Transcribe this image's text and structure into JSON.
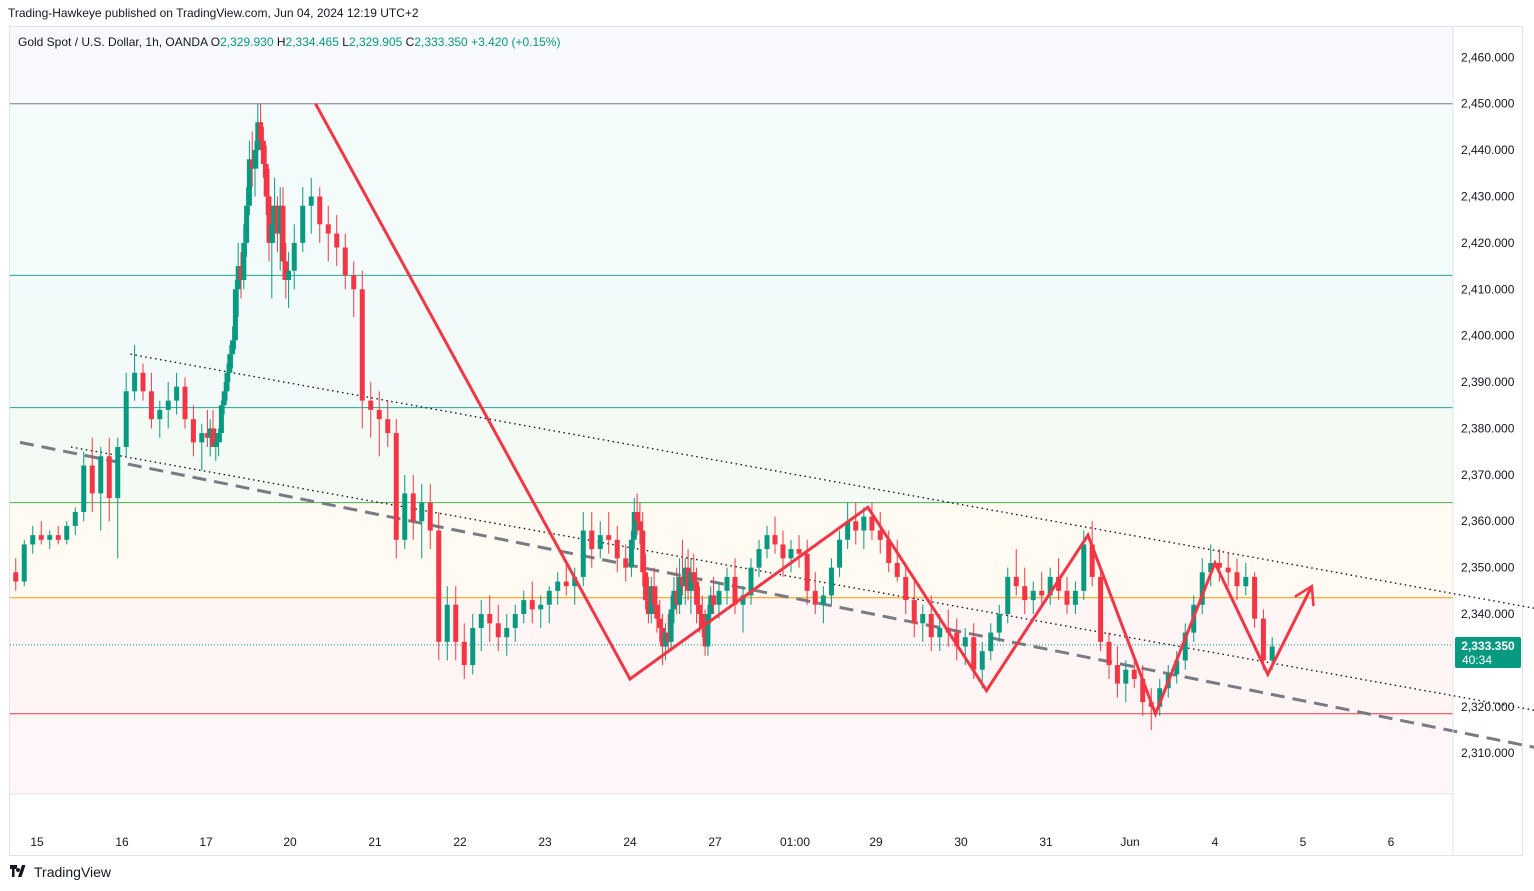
{
  "header": {
    "publisher_line": "Trading-Hawkeye published on TradingView.com, Jun 04, 2024 12:19 UTC+2"
  },
  "legend": {
    "symbol": "Gold Spot / U.S. Dollar, 1h, OANDA",
    "o_label": "O",
    "o_value": "2,329.930",
    "h_label": "H",
    "h_value": "2,334.465",
    "l_label": "L",
    "l_value": "2,329.905",
    "c_label": "C",
    "c_value": "2,333.350",
    "change": "+3.420 (+0.15%)"
  },
  "price_badge": {
    "value": "2,333.350",
    "countdown": "40:34"
  },
  "footer": {
    "brand": "TradingView"
  },
  "colors": {
    "up": "#089981",
    "down": "#f23645",
    "pattern": "#f23645",
    "teal_level": "#26a69a",
    "green_level": "#4caf50",
    "orange_level": "#ff9800",
    "red_level": "#f23645",
    "gray_level": "#787b86"
  },
  "chart_data": {
    "type": "candlestick",
    "ylim": [
      2305,
      2465
    ],
    "x_ticks": [
      "15",
      "16",
      "17",
      "20",
      "21",
      "22",
      "23",
      "24",
      "27",
      "01:00",
      "29",
      "30",
      "31",
      "Jun",
      "4",
      "5",
      "6"
    ],
    "y_ticks": [
      2310,
      2320,
      2330,
      2340,
      2350,
      2360,
      2370,
      2380,
      2390,
      2400,
      2410,
      2420,
      2430,
      2440,
      2450,
      2460
    ],
    "y_tick_labels": [
      "2,310.000",
      "2,320.000",
      "2,330.000",
      "2,340.000",
      "2,350.000",
      "2,360.000",
      "2,370.000",
      "2,380.000",
      "2,390.000",
      "2,400.000",
      "2,410.000",
      "2,420.000",
      "2,430.000",
      "2,440.000",
      "2,450.000",
      "2,460.000"
    ],
    "last_price": 2333.35,
    "horizontal_levels": [
      {
        "price": 2450.0,
        "color": "gray"
      },
      {
        "price": 2413.0,
        "color": "teal"
      },
      {
        "price": 2384.5,
        "color": "teal"
      },
      {
        "price": 2364.0,
        "color": "green"
      },
      {
        "price": 2343.5,
        "color": "orange"
      },
      {
        "price": 2318.5,
        "color": "red"
      }
    ],
    "zigzag_path": [
      {
        "t": 20.3,
        "price": 2450.0
      },
      {
        "t": 24.0,
        "price": 2326.0
      },
      {
        "t": 28.9,
        "price": 2363.0
      },
      {
        "t": 30.3,
        "price": 2323.5
      },
      {
        "t": 31.5,
        "price": 2357.0
      },
      {
        "t": 32.3,
        "price": 2318.5
      },
      {
        "t": 33.0,
        "price": 2351.0
      },
      {
        "t": 33.6,
        "price": 2327.0
      },
      {
        "t": 34.1,
        "price": 2346.0
      }
    ],
    "trendlines": [
      {
        "style": "dotted",
        "from": {
          "t": 16.1,
          "price": 2396.0
        },
        "to": {
          "t": 36.7,
          "price": 2341.0
        }
      },
      {
        "style": "dotted",
        "from": {
          "t": 15.4,
          "price": 2376.0
        },
        "to": {
          "t": 36.7,
          "price": 2319.0
        }
      },
      {
        "style": "dashed",
        "from": {
          "t": 14.8,
          "price": 2377.0
        },
        "to": {
          "t": 36.7,
          "price": 2311.0
        }
      }
    ],
    "candles": [
      [
        14.75,
        2349,
        2352,
        2345,
        2347
      ],
      [
        14.85,
        2347,
        2356,
        2346,
        2355
      ],
      [
        14.95,
        2355,
        2359,
        2353,
        2357
      ],
      [
        15.05,
        2357,
        2360,
        2355,
        2356
      ],
      [
        15.15,
        2356,
        2358,
        2354,
        2357
      ],
      [
        15.25,
        2357,
        2359,
        2355,
        2356
      ],
      [
        15.35,
        2356,
        2360,
        2355,
        2359
      ],
      [
        15.45,
        2359,
        2363,
        2357,
        2362
      ],
      [
        15.55,
        2362,
        2375,
        2360,
        2372
      ],
      [
        15.65,
        2372,
        2378,
        2362,
        2366
      ],
      [
        15.75,
        2366,
        2376,
        2358,
        2374
      ],
      [
        15.85,
        2374,
        2378,
        2360,
        2365
      ],
      [
        15.95,
        2365,
        2378,
        2352,
        2376
      ],
      [
        16.05,
        2376,
        2392,
        2374,
        2388
      ],
      [
        16.15,
        2388,
        2398,
        2386,
        2392
      ],
      [
        16.25,
        2392,
        2394,
        2386,
        2388
      ],
      [
        16.35,
        2388,
        2392,
        2380,
        2382
      ],
      [
        16.45,
        2382,
        2386,
        2378,
        2384
      ],
      [
        16.55,
        2384,
        2390,
        2380,
        2386
      ],
      [
        16.65,
        2386,
        2392,
        2383,
        2389
      ],
      [
        16.75,
        2389,
        2391,
        2380,
        2382
      ],
      [
        16.85,
        2382,
        2385,
        2374,
        2377
      ],
      [
        16.95,
        2377,
        2381,
        2371,
        2379
      ],
      [
        17.05,
        2379,
        2384,
        2376,
        2378
      ],
      [
        17.15,
        2378,
        2382,
        2374,
        2380
      ],
      [
        17.25,
        2380,
        2384,
        2377,
        2376
      ],
      [
        17.35,
        2376,
        2380,
        2373,
        2377
      ],
      [
        17.45,
        2377,
        2380,
        2374,
        2379
      ],
      [
        17.55,
        2379,
        2386,
        2377,
        2385
      ],
      [
        17.65,
        2385,
        2390,
        2383,
        2388
      ],
      [
        17.75,
        2388,
        2394,
        2386,
        2392
      ],
      [
        17.85,
        2392,
        2398,
        2390,
        2396
      ],
      [
        17.95,
        2396,
        2402,
        2393,
        2399
      ],
      [
        18.05,
        2399,
        2412,
        2397,
        2410
      ],
      [
        18.15,
        2410,
        2420,
        2404,
        2415
      ],
      [
        18.25,
        2415,
        2418,
        2408,
        2412
      ],
      [
        18.35,
        2412,
        2424,
        2410,
        2420
      ],
      [
        18.45,
        2420,
        2432,
        2417,
        2428
      ],
      [
        18.55,
        2428,
        2442,
        2426,
        2438
      ],
      [
        18.65,
        2438,
        2444,
        2432,
        2436
      ],
      [
        18.75,
        2436,
        2442,
        2430,
        2440
      ],
      [
        18.85,
        2440,
        2450,
        2436,
        2446
      ],
      [
        18.95,
        2446,
        2450,
        2440,
        2442
      ],
      [
        19.05,
        2442,
        2445,
        2434,
        2437
      ],
      [
        19.15,
        2437,
        2441,
        2426,
        2430
      ],
      [
        19.25,
        2430,
        2436,
        2416,
        2420
      ],
      [
        19.35,
        2420,
        2428,
        2408,
        2424
      ],
      [
        19.45,
        2424,
        2434,
        2420,
        2428
      ],
      [
        19.55,
        2428,
        2430,
        2418,
        2422
      ],
      [
        19.65,
        2422,
        2432,
        2414,
        2428
      ],
      [
        19.75,
        2428,
        2432,
        2412,
        2416
      ],
      [
        19.85,
        2416,
        2420,
        2408,
        2412
      ],
      [
        19.95,
        2412,
        2418,
        2406,
        2414
      ],
      [
        20.05,
        2414,
        2424,
        2410,
        2420
      ],
      [
        20.15,
        2420,
        2432,
        2418,
        2428
      ],
      [
        20.25,
        2428,
        2434,
        2422,
        2430
      ],
      [
        20.35,
        2430,
        2432,
        2420,
        2424
      ],
      [
        20.45,
        2424,
        2428,
        2416,
        2422
      ],
      [
        20.55,
        2422,
        2426,
        2415,
        2419
      ],
      [
        20.65,
        2419,
        2422,
        2410,
        2413
      ],
      [
        20.75,
        2413,
        2416,
        2404,
        2410
      ],
      [
        20.85,
        2410,
        2414,
        2380,
        2386
      ],
      [
        20.95,
        2386,
        2390,
        2378,
        2384
      ],
      [
        21.05,
        2384,
        2388,
        2374,
        2382
      ],
      [
        21.15,
        2382,
        2386,
        2376,
        2379
      ],
      [
        21.25,
        2379,
        2382,
        2352,
        2356
      ],
      [
        21.35,
        2356,
        2370,
        2354,
        2366
      ],
      [
        21.45,
        2366,
        2370,
        2356,
        2360
      ],
      [
        21.55,
        2360,
        2368,
        2352,
        2364
      ],
      [
        21.65,
        2364,
        2368,
        2354,
        2358
      ],
      [
        21.75,
        2358,
        2362,
        2330,
        2334
      ],
      [
        21.85,
        2334,
        2346,
        2330,
        2342
      ],
      [
        21.95,
        2342,
        2346,
        2330,
        2334
      ],
      [
        22.05,
        2334,
        2338,
        2326,
        2329
      ],
      [
        22.15,
        2329,
        2340,
        2327,
        2337
      ],
      [
        22.25,
        2337,
        2343,
        2332,
        2340
      ],
      [
        22.35,
        2340,
        2344,
        2334,
        2338
      ],
      [
        22.45,
        2338,
        2342,
        2332,
        2335
      ],
      [
        22.55,
        2335,
        2340,
        2331,
        2337
      ],
      [
        22.65,
        2337,
        2342,
        2334,
        2340
      ],
      [
        22.75,
        2340,
        2345,
        2338,
        2343
      ],
      [
        22.85,
        2343,
        2347,
        2338,
        2341
      ],
      [
        22.95,
        2341,
        2344,
        2337,
        2342
      ],
      [
        23.05,
        2342,
        2346,
        2338,
        2345
      ],
      [
        23.15,
        2345,
        2349,
        2342,
        2347
      ],
      [
        23.25,
        2347,
        2351,
        2344,
        2346
      ],
      [
        23.35,
        2346,
        2350,
        2342,
        2348
      ],
      [
        23.45,
        2348,
        2362,
        2346,
        2358
      ],
      [
        23.55,
        2358,
        2362,
        2350,
        2354
      ],
      [
        23.65,
        2354,
        2360,
        2352,
        2357
      ],
      [
        23.75,
        2357,
        2362,
        2353,
        2356
      ],
      [
        23.85,
        2356,
        2359,
        2349,
        2352
      ],
      [
        23.95,
        2352,
        2355,
        2347,
        2350
      ],
      [
        24.05,
        2350,
        2358,
        2348,
        2356
      ],
      [
        24.15,
        2356,
        2365,
        2354,
        2362
      ],
      [
        24.25,
        2362,
        2366,
        2357,
        2360
      ],
      [
        24.35,
        2360,
        2364,
        2355,
        2358
      ],
      [
        24.45,
        2358,
        2362,
        2346,
        2349
      ],
      [
        24.55,
        2349,
        2353,
        2341,
        2343
      ],
      [
        24.65,
        2343,
        2348,
        2338,
        2340
      ],
      [
        24.75,
        2340,
        2348,
        2338,
        2346
      ],
      [
        24.85,
        2346,
        2350,
        2340,
        2342
      ],
      [
        24.95,
        2342,
        2346,
        2336,
        2339
      ],
      [
        25.05,
        2339,
        2343,
        2334,
        2337
      ],
      [
        25.15,
        2337,
        2340,
        2329,
        2333
      ],
      [
        25.25,
        2333,
        2338,
        2330,
        2336
      ],
      [
        25.35,
        2336,
        2340,
        2332,
        2334
      ],
      [
        25.45,
        2334,
        2344,
        2332,
        2341
      ],
      [
        25.55,
        2341,
        2348,
        2338,
        2345
      ],
      [
        25.65,
        2345,
        2350,
        2340,
        2342
      ],
      [
        25.75,
        2342,
        2352,
        2340,
        2348
      ],
      [
        25.85,
        2348,
        2356,
        2344,
        2346
      ],
      [
        25.95,
        2346,
        2352,
        2342,
        2350
      ],
      [
        26.05,
        2350,
        2354,
        2343,
        2345
      ],
      [
        26.15,
        2345,
        2352,
        2340,
        2349
      ],
      [
        26.25,
        2349,
        2353,
        2345,
        2347
      ],
      [
        26.35,
        2347,
        2350,
        2338,
        2342
      ],
      [
        26.45,
        2342,
        2346,
        2336,
        2340
      ],
      [
        26.55,
        2340,
        2344,
        2335,
        2337
      ],
      [
        26.65,
        2337,
        2341,
        2331,
        2333
      ],
      [
        26.75,
        2333,
        2342,
        2331,
        2340
      ],
      [
        26.85,
        2340,
        2346,
        2338,
        2344
      ],
      [
        26.95,
        2344,
        2348,
        2340,
        2342
      ],
      [
        27.05,
        2342,
        2347,
        2339,
        2345
      ],
      [
        27.15,
        2345,
        2350,
        2342,
        2348
      ],
      [
        27.25,
        2348,
        2352,
        2340,
        2342
      ],
      [
        27.35,
        2342,
        2346,
        2336,
        2344
      ],
      [
        27.45,
        2344,
        2352,
        2342,
        2350
      ],
      [
        27.55,
        2350,
        2356,
        2348,
        2354
      ],
      [
        27.65,
        2354,
        2359,
        2352,
        2357
      ],
      [
        27.75,
        2357,
        2361,
        2353,
        2355
      ],
      [
        27.85,
        2355,
        2358,
        2348,
        2352
      ],
      [
        27.95,
        2352,
        2356,
        2349,
        2354
      ],
      [
        28.05,
        2354,
        2357,
        2350,
        2353
      ],
      [
        28.15,
        2353,
        2356,
        2342,
        2345
      ],
      [
        28.25,
        2345,
        2349,
        2340,
        2342
      ],
      [
        28.35,
        2342,
        2346,
        2338,
        2344
      ],
      [
        28.45,
        2344,
        2352,
        2342,
        2350
      ],
      [
        28.55,
        2350,
        2358,
        2348,
        2356
      ],
      [
        28.65,
        2356,
        2364,
        2354,
        2360
      ],
      [
        28.75,
        2360,
        2364,
        2355,
        2358
      ],
      [
        28.85,
        2358,
        2363,
        2354,
        2361
      ],
      [
        28.95,
        2361,
        2364,
        2356,
        2358
      ],
      [
        29.05,
        2358,
        2362,
        2353,
        2356
      ],
      [
        29.15,
        2356,
        2358,
        2349,
        2351
      ],
      [
        29.25,
        2351,
        2356,
        2347,
        2348
      ],
      [
        29.35,
        2348,
        2351,
        2340,
        2343
      ],
      [
        29.45,
        2343,
        2347,
        2335,
        2338
      ],
      [
        29.55,
        2338,
        2342,
        2334,
        2340
      ],
      [
        29.65,
        2340,
        2344,
        2332,
        2335
      ],
      [
        29.75,
        2335,
        2340,
        2332,
        2337
      ],
      [
        29.85,
        2337,
        2341,
        2333,
        2336
      ],
      [
        29.95,
        2336,
        2339,
        2330,
        2333
      ],
      [
        30.05,
        2333,
        2337,
        2329,
        2335
      ],
      [
        30.15,
        2335,
        2338,
        2326,
        2328
      ],
      [
        30.25,
        2328,
        2334,
        2324,
        2332
      ],
      [
        30.35,
        2332,
        2338,
        2330,
        2336
      ],
      [
        30.45,
        2336,
        2342,
        2334,
        2340
      ],
      [
        30.55,
        2340,
        2350,
        2338,
        2348
      ],
      [
        30.65,
        2348,
        2354,
        2344,
        2346
      ],
      [
        30.75,
        2346,
        2350,
        2340,
        2343
      ],
      [
        30.85,
        2343,
        2347,
        2340,
        2345
      ],
      [
        30.95,
        2345,
        2349,
        2342,
        2344
      ],
      [
        31.05,
        2344,
        2350,
        2342,
        2348
      ],
      [
        31.15,
        2348,
        2352,
        2343,
        2345
      ],
      [
        31.25,
        2345,
        2348,
        2340,
        2342
      ],
      [
        31.35,
        2342,
        2347,
        2340,
        2345
      ],
      [
        31.45,
        2345,
        2358,
        2343,
        2355
      ],
      [
        31.55,
        2355,
        2360,
        2346,
        2348
      ],
      [
        31.65,
        2348,
        2350,
        2332,
        2334
      ],
      [
        31.75,
        2334,
        2336,
        2326,
        2329
      ],
      [
        31.85,
        2329,
        2333,
        2322,
        2325
      ],
      [
        31.95,
        2325,
        2330,
        2321,
        2328
      ],
      [
        32.05,
        2328,
        2331,
        2324,
        2326
      ],
      [
        32.15,
        2326,
        2329,
        2318,
        2321
      ],
      [
        32.25,
        2321,
        2324,
        2315,
        2320
      ],
      [
        32.35,
        2320,
        2326,
        2318,
        2324
      ],
      [
        32.45,
        2324,
        2329,
        2322,
        2327
      ],
      [
        32.55,
        2327,
        2332,
        2325,
        2330
      ],
      [
        32.65,
        2330,
        2338,
        2328,
        2336
      ],
      [
        32.75,
        2336,
        2344,
        2334,
        2342
      ],
      [
        32.85,
        2342,
        2352,
        2340,
        2349
      ],
      [
        32.95,
        2349,
        2355,
        2346,
        2351
      ],
      [
        33.05,
        2351,
        2354,
        2347,
        2350
      ],
      [
        33.15,
        2350,
        2353,
        2346,
        2349
      ],
      [
        33.25,
        2349,
        2352,
        2343,
        2346
      ],
      [
        33.35,
        2346,
        2351,
        2344,
        2348
      ],
      [
        33.45,
        2348,
        2349,
        2337,
        2339
      ],
      [
        33.55,
        2339,
        2341,
        2328,
        2330
      ],
      [
        33.65,
        2330,
        2335,
        2328,
        2333
      ]
    ]
  }
}
